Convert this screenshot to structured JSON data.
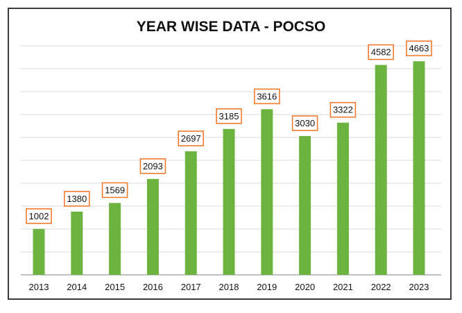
{
  "chart_data": {
    "type": "bar",
    "title": "YEAR WISE DATA - POCSO",
    "categories": [
      "2013",
      "2014",
      "2015",
      "2016",
      "2017",
      "2018",
      "2019",
      "2020",
      "2021",
      "2022",
      "2023"
    ],
    "values": [
      1002,
      1380,
      1569,
      2093,
      2697,
      3185,
      3616,
      3030,
      3322,
      4582,
      4663
    ],
    "xlabel": "",
    "ylabel": "",
    "ylim": [
      0,
      5000
    ],
    "grid": true,
    "legend": "none",
    "bar_color": "#6cb33f",
    "label_border_color": "#f07a2d",
    "gridline_color": "#d9d9d9",
    "axis_color": "#9a9a9a"
  }
}
